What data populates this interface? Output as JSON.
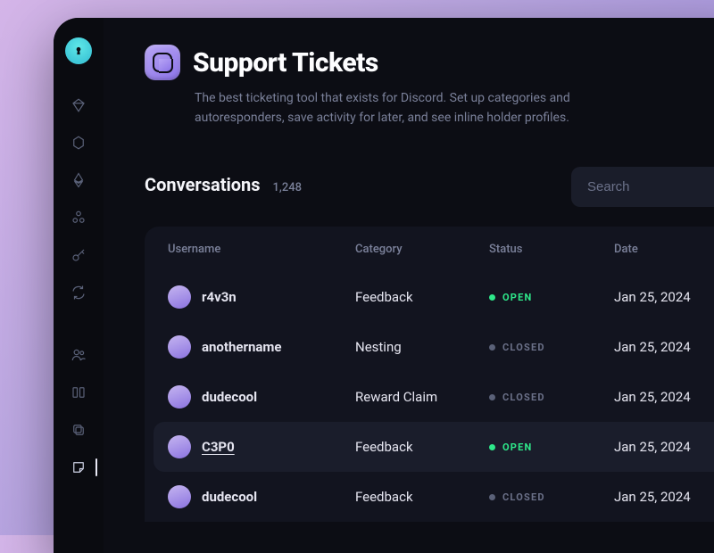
{
  "header": {
    "title": "Support Tickets",
    "subtitle": "The best ticketing tool that exists for Discord. Set up categories and autoresponders, save activity for later, and see inline holder profiles."
  },
  "conversations": {
    "heading": "Conversations",
    "count": "1,248",
    "search_placeholder": "Search"
  },
  "table": {
    "columns": [
      "Username",
      "Category",
      "Status",
      "Date"
    ],
    "status_labels": {
      "open": "OPEN",
      "closed": "CLOSED"
    },
    "rows": [
      {
        "username": "r4v3n",
        "category": "Feedback",
        "status": "open",
        "date": "Jan 25, 2024",
        "highlight": false,
        "underline": false
      },
      {
        "username": "anothername",
        "category": "Nesting",
        "status": "closed",
        "date": "Jan 25, 2024",
        "highlight": false,
        "underline": false
      },
      {
        "username": "dudecool",
        "category": "Reward Claim",
        "status": "closed",
        "date": "Jan 25, 2024",
        "highlight": false,
        "underline": false
      },
      {
        "username": "C3P0",
        "category": "Feedback",
        "status": "open",
        "date": "Jan 25, 2024",
        "highlight": true,
        "underline": true
      },
      {
        "username": "dudecool",
        "category": "Feedback",
        "status": "closed",
        "date": "Jan 25, 2024",
        "highlight": false,
        "underline": false
      }
    ]
  },
  "colors": {
    "bg_gradient_start": "#d4b5e8",
    "bg_gradient_end": "#9585d8",
    "panel": "#0c0d14",
    "card": "#12141f",
    "row_highlight": "#1a1d2b",
    "text_primary": "#e8e8f0",
    "text_muted": "#7a8099",
    "status_open": "#2ee88a",
    "status_closed": "#6b7189",
    "avatar_gradient_a": "#c5b5f0",
    "avatar_gradient_b": "#8b73e0",
    "accent_gradient_a": "#b8a5f5",
    "accent_gradient_b": "#8b73e8"
  }
}
